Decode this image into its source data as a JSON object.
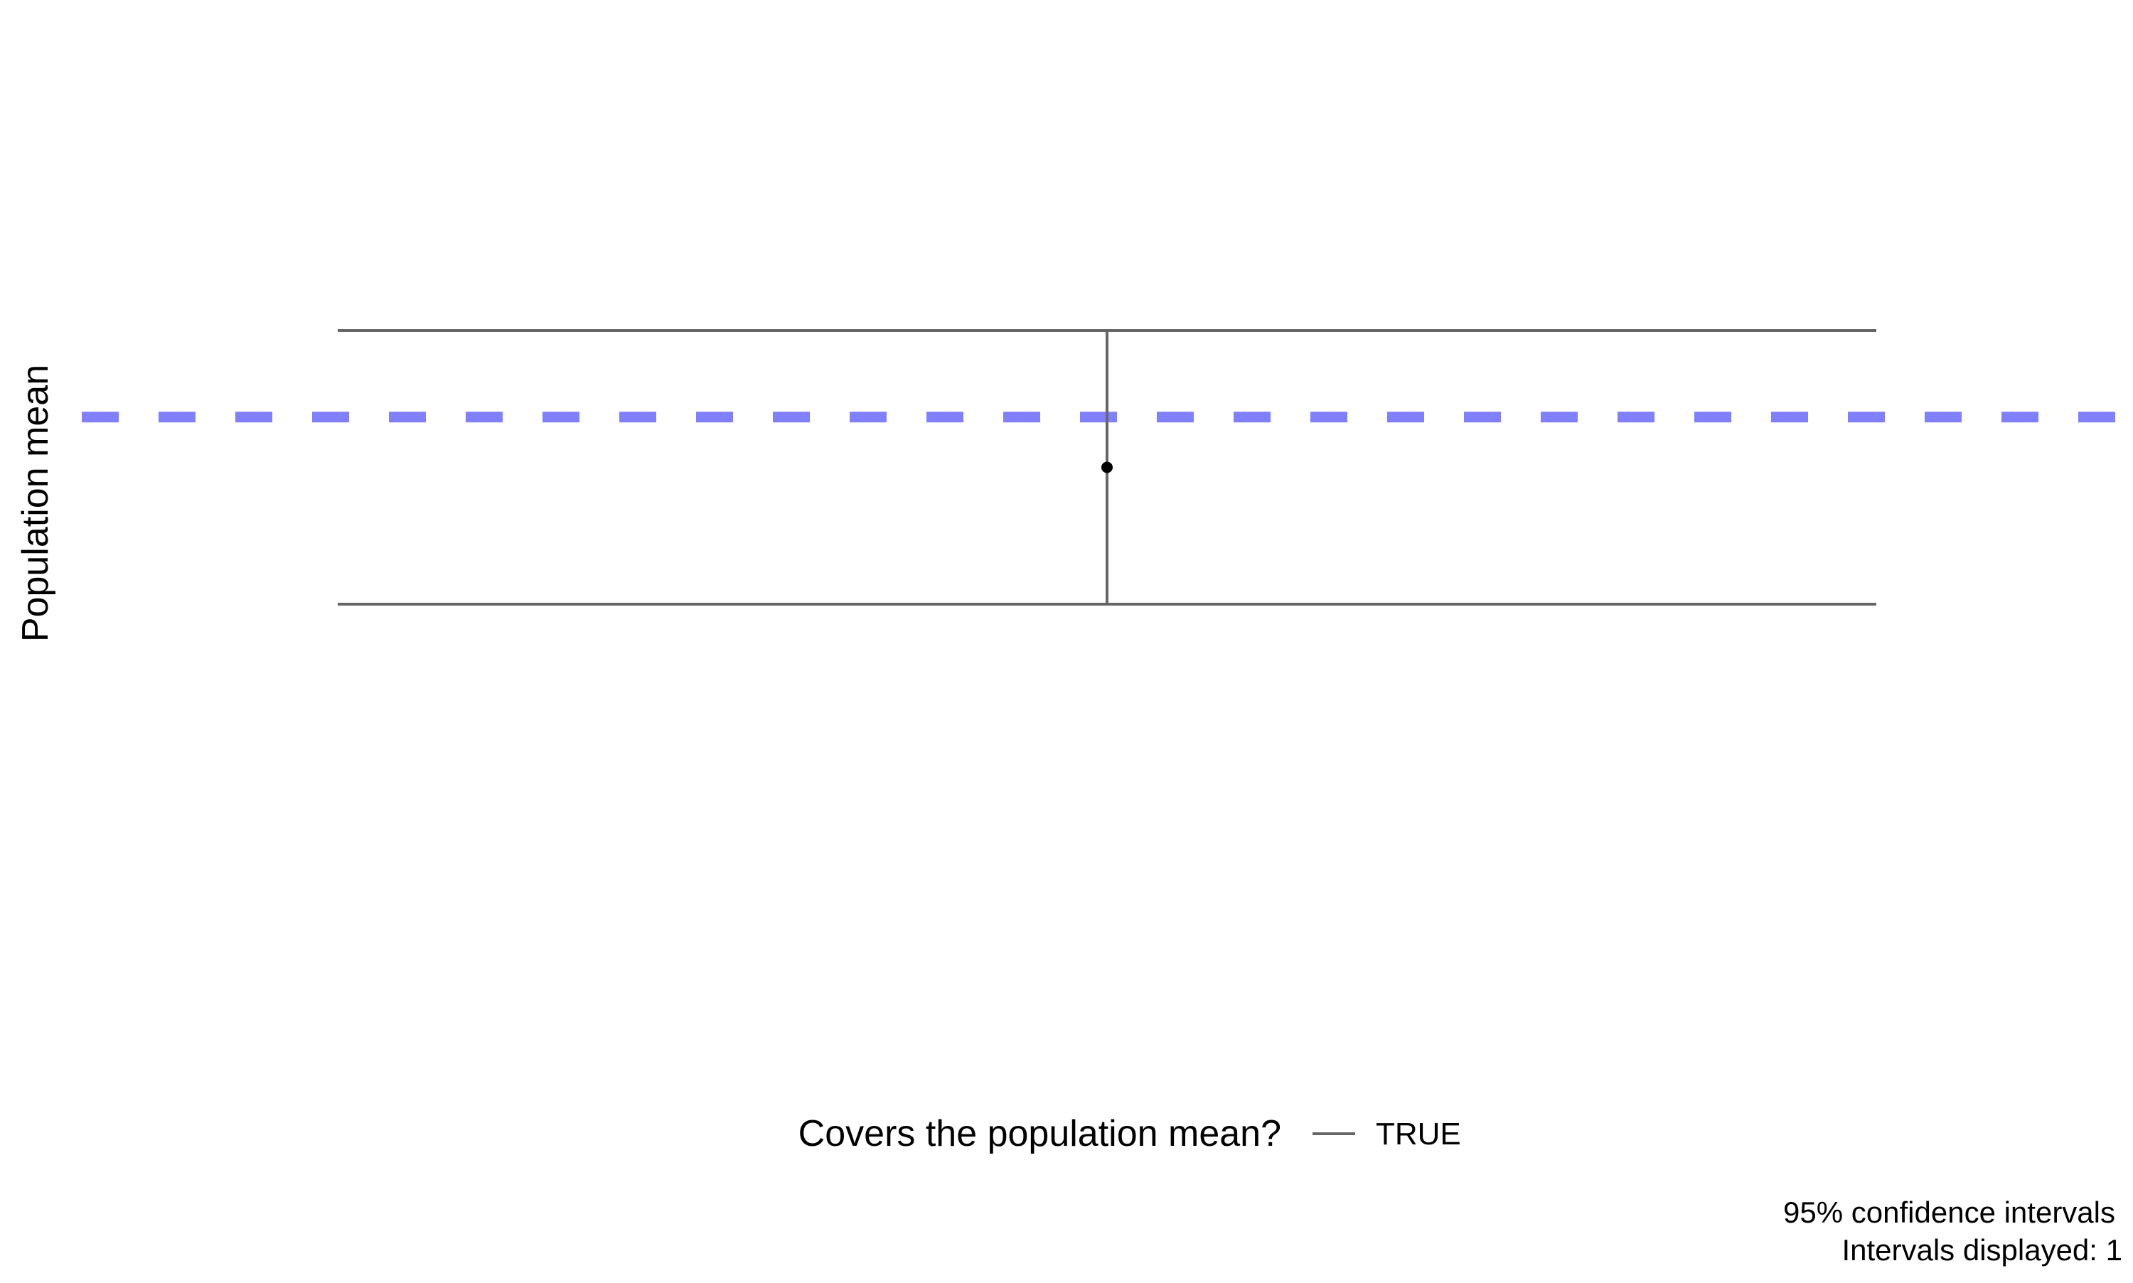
{
  "chart_data": {
    "type": "errorbar",
    "title": "",
    "xlabel": "",
    "ylabel": "Population mean",
    "population_mean": 0.32,
    "intervals": [
      {
        "id": 1,
        "estimate": 0.14,
        "lower": -0.35,
        "upper": 0.63,
        "covers": "TRUE"
      }
    ],
    "ylim": [
      -1.33,
      1.33
    ],
    "grid": false,
    "legend": {
      "title": "Covers the population mean?",
      "placement": "bottom",
      "entries": [
        {
          "label": "TRUE",
          "color": "#666666"
        }
      ]
    },
    "caption": [
      "95% confidence intervals",
      "Intervals displayed: 1"
    ],
    "colors": {
      "interval": "#666666",
      "point": "#000000",
      "population_mean_line": "#8080ff"
    }
  }
}
